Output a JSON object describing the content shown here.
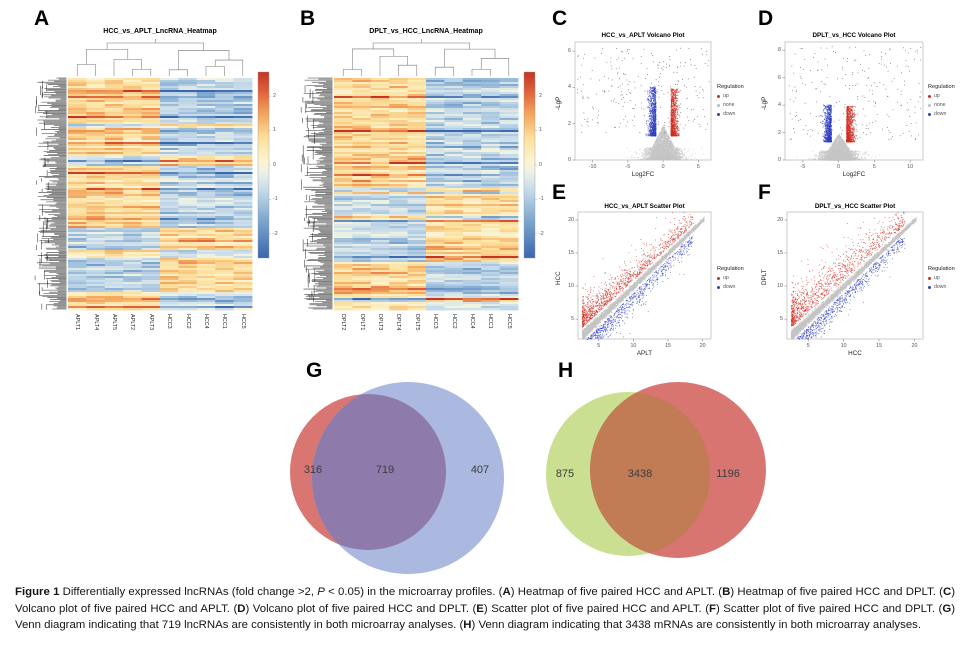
{
  "panels": {
    "A": {
      "letter": "A",
      "type": "heatmap",
      "title": "HCC_vs_APLT_LncRNA_Heatmap",
      "column_labels": [
        "APLT1",
        "APLT4",
        "APLT5",
        "APLT2",
        "APLT3",
        "HCC3",
        "HCC2",
        "HCC4",
        "HCC1",
        "HCC5"
      ],
      "colorbar_ticks": [
        "2",
        "1",
        "0",
        "-1",
        "-2"
      ]
    },
    "B": {
      "letter": "B",
      "type": "heatmap",
      "title": "DPLT_vs_HCC_LncRNA_Heatmap",
      "column_labels": [
        "DPLT2",
        "DPLT1",
        "DPLT3",
        "DPLT4",
        "DPLT5",
        "HCC3",
        "HCC2",
        "HCC4",
        "HCC1",
        "HCC5"
      ],
      "colorbar_ticks": [
        "2",
        "1",
        "0",
        "-1",
        "-2"
      ]
    },
    "C": {
      "letter": "C",
      "type": "volcano",
      "title": "HCC_vs_APLT Volcano Plot",
      "xlabel": "Log2FC",
      "ylabel": "-LgP",
      "x_ticks": [
        "-10",
        "-5",
        "0",
        "5"
      ],
      "y_ticks": [
        "0",
        "2",
        "4",
        "6"
      ],
      "legend_title": "Regulation",
      "legend_items": [
        {
          "label": "up",
          "color": "#cf2e23"
        },
        {
          "label": "none",
          "color": "#bdbdbd"
        },
        {
          "label": "down",
          "color": "#3340c2"
        }
      ]
    },
    "D": {
      "letter": "D",
      "type": "volcano",
      "title": "DPLT_vs_HCC Volcano Plot",
      "xlabel": "Log2FC",
      "ylabel": "-LgP",
      "x_ticks": [
        "-5",
        "0",
        "5",
        "10"
      ],
      "y_ticks": [
        "0",
        "2",
        "4",
        "6",
        "8"
      ],
      "legend_title": "Regulation",
      "legend_items": [
        {
          "label": "up",
          "color": "#cf2e23"
        },
        {
          "label": "none",
          "color": "#bdbdbd"
        },
        {
          "label": "down",
          "color": "#3340c2"
        }
      ]
    },
    "E": {
      "letter": "E",
      "type": "scatter",
      "title": "HCC_vs_APLT Scatter Plot",
      "xlabel": "APLT",
      "ylabel": "HCC",
      "x_ticks": [
        "5",
        "10",
        "15",
        "20"
      ],
      "y_ticks": [
        "5",
        "10",
        "15",
        "20"
      ],
      "legend_title": "Regulation",
      "legend_items": [
        {
          "label": "up",
          "color": "#cf2e23"
        },
        {
          "label": "down",
          "color": "#3340c2"
        }
      ]
    },
    "F": {
      "letter": "F",
      "type": "scatter",
      "title": "DPLT_vs_HCC Scatter Plot",
      "xlabel": "HCC",
      "ylabel": "DPLT",
      "x_ticks": [
        "5",
        "10",
        "15",
        "20"
      ],
      "y_ticks": [
        "5",
        "10",
        "15",
        "20"
      ],
      "legend_title": "Regulation",
      "legend_items": [
        {
          "label": "up",
          "color": "#cf2e23"
        },
        {
          "label": "down",
          "color": "#3340c2"
        }
      ]
    },
    "G": {
      "letter": "G",
      "type": "venn",
      "left_value": "316",
      "overlap_value": "719",
      "right_value": "407",
      "left_color": "#d97672",
      "right_color": "#abb9e0",
      "overlap_color": "#8e7bab"
    },
    "H": {
      "letter": "H",
      "type": "venn",
      "left_value": "875",
      "overlap_value": "3438",
      "right_value": "1196",
      "left_color": "#cbdf92",
      "right_color": "#d97570",
      "overlap_color": "#c17b55"
    }
  },
  "heatmap_colormap": {
    "high": "#c33427",
    "mid": "#fdf3cf",
    "low": "#3a66ae"
  },
  "chart_data": [
    {
      "type": "heatmap",
      "panel": "A",
      "title": "HCC_vs_APLT_LncRNA_Heatmap",
      "columns": [
        "APLT1",
        "APLT4",
        "APLT5",
        "APLT2",
        "APLT3",
        "HCC3",
        "HCC2",
        "HCC4",
        "HCC1",
        "HCC5"
      ],
      "colorbar_ticks": [
        2,
        1,
        0,
        -1,
        -2
      ],
      "colorbar_range": [
        -2,
        2
      ]
    },
    {
      "type": "heatmap",
      "panel": "B",
      "title": "DPLT_vs_HCC_LncRNA_Heatmap",
      "columns": [
        "DPLT2",
        "DPLT1",
        "DPLT3",
        "DPLT4",
        "DPLT5",
        "HCC3",
        "HCC2",
        "HCC4",
        "HCC1",
        "HCC5"
      ],
      "colorbar_ticks": [
        2,
        1,
        0,
        -1,
        -2
      ],
      "colorbar_range": [
        -2,
        2
      ]
    },
    {
      "type": "scatter",
      "subtype": "volcano",
      "panel": "C",
      "title": "HCC_vs_APLT Volcano Plot",
      "xlabel": "Log2FC",
      "ylabel": "-LgP",
      "x_ticks": [
        -10,
        -5,
        0,
        5
      ],
      "y_ticks": [
        0,
        2,
        4,
        6
      ],
      "legend": [
        "up",
        "none",
        "down"
      ],
      "legend_position": "right"
    },
    {
      "type": "scatter",
      "subtype": "volcano",
      "panel": "D",
      "title": "DPLT_vs_HCC Volcano Plot",
      "xlabel": "Log2FC",
      "ylabel": "-LgP",
      "x_ticks": [
        -5,
        0,
        5,
        10
      ],
      "y_ticks": [
        0,
        2,
        4,
        6,
        8
      ],
      "legend": [
        "up",
        "none",
        "down"
      ],
      "legend_position": "right"
    },
    {
      "type": "scatter",
      "panel": "E",
      "title": "HCC_vs_APLT Scatter Plot",
      "xlabel": "APLT",
      "ylabel": "HCC",
      "x_ticks": [
        5,
        10,
        15,
        20
      ],
      "y_ticks": [
        5,
        10,
        15,
        20
      ],
      "legend": [
        "up",
        "down"
      ],
      "legend_position": "right"
    },
    {
      "type": "scatter",
      "panel": "F",
      "title": "DPLT_vs_HCC Scatter Plot",
      "xlabel": "HCC",
      "ylabel": "DPLT",
      "x_ticks": [
        5,
        10,
        15,
        20
      ],
      "y_ticks": [
        5,
        10,
        15,
        20
      ],
      "legend": [
        "up",
        "down"
      ],
      "legend_position": "right"
    },
    {
      "type": "venn",
      "panel": "G",
      "left_only": 316,
      "overlap": 719,
      "right_only": 407
    },
    {
      "type": "venn",
      "panel": "H",
      "left_only": 875,
      "overlap": 3438,
      "right_only": 1196
    }
  ],
  "figure_caption": {
    "segments": [
      {
        "text": "Figure 1 ",
        "bold": true
      },
      {
        "text": "Differentially expressed lncRNAs (fold change >2, ",
        "bold": false
      },
      {
        "text": "P",
        "bold": false,
        "italic": true
      },
      {
        "text": " < 0.05) in the microarray profiles. (",
        "bold": false
      },
      {
        "text": "A",
        "bold": true
      },
      {
        "text": ") Heatmap of five paired HCC and APLT. (",
        "bold": false
      },
      {
        "text": "B",
        "bold": true
      },
      {
        "text": ") Heatmap of five paired HCC and DPLT. (",
        "bold": false
      },
      {
        "text": "C",
        "bold": true
      },
      {
        "text": ") Volcano plot of five paired HCC and APLT. (",
        "bold": false
      },
      {
        "text": "D",
        "bold": true
      },
      {
        "text": ") Volcano plot of five paired HCC and DPLT. (",
        "bold": false
      },
      {
        "text": "E",
        "bold": true
      },
      {
        "text": ") Scatter plot of five paired HCC and APLT. (",
        "bold": false
      },
      {
        "text": "F",
        "bold": true
      },
      {
        "text": ") Scatter plot of five paired HCC and DPLT. (",
        "bold": false
      },
      {
        "text": "G",
        "bold": true
      },
      {
        "text": ") Venn diagram indicating that 719 lncRNAs are consistently in both microarray analyses. (",
        "bold": false
      },
      {
        "text": "H",
        "bold": true
      },
      {
        "text": ") Venn diagram indicating that 3438 mRNAs are consistently in both microarray analyses.",
        "bold": false
      }
    ]
  }
}
